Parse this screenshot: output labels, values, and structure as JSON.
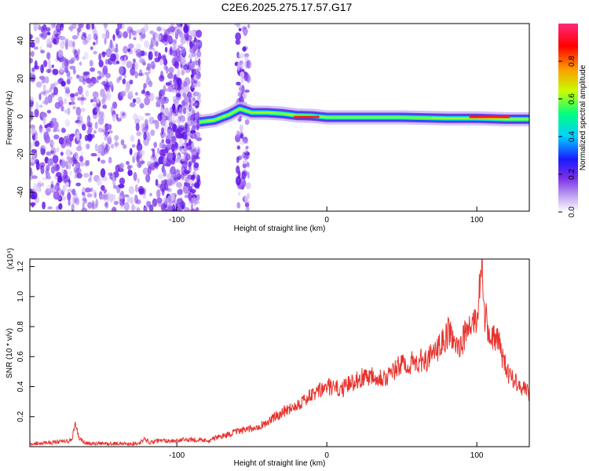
{
  "title": "C2E6.2025.275.17.57.G17",
  "chart_data": [
    {
      "type": "heatmap",
      "title": "C2E6.2025.275.17.57.G17",
      "xlabel": "Height of straight line (km)",
      "ylabel": "Frequency (Hz)",
      "xlim": [
        -198,
        135
      ],
      "ylim": [
        -50,
        49
      ],
      "x_ticks": [
        "-100",
        "0",
        "100"
      ],
      "y_ticks": [
        "-40",
        "-20",
        "0",
        "20",
        "40"
      ],
      "colorbar": {
        "label": "Normalized spectral amplitude",
        "range": [
          0.0,
          1.0
        ],
        "ticks": [
          "0.0",
          "0.2",
          "0.4",
          "0.6",
          "0.8"
        ],
        "colors": [
          "#ffffff",
          "#cbb4f2",
          "#7a2ee8",
          "#1a1aff",
          "#00cfff",
          "#00ff80",
          "#c8ff00",
          "#ff9900",
          "#ff0000",
          "#ff2a7a"
        ]
      },
      "noise_region": {
        "x_from": -198,
        "x_to": -85,
        "x_band_from": -110,
        "x_band_to": -90,
        "x_extra": [
          -60,
          -52
        ]
      },
      "ridge": [
        {
          "x": -85,
          "f": -3
        },
        {
          "x": -75,
          "f": -2
        },
        {
          "x": -65,
          "f": 1
        },
        {
          "x": -58,
          "f": 4
        },
        {
          "x": -50,
          "f": 2
        },
        {
          "x": -40,
          "f": 2
        },
        {
          "x": -30,
          "f": 1.5
        },
        {
          "x": -20,
          "f": 0.5
        },
        {
          "x": -10,
          "f": 0.3
        },
        {
          "x": 0,
          "f": -0.5
        },
        {
          "x": 20,
          "f": -0.5
        },
        {
          "x": 50,
          "f": -0.5
        },
        {
          "x": 80,
          "f": -1
        },
        {
          "x": 100,
          "f": -1
        },
        {
          "x": 120,
          "f": -1.5
        },
        {
          "x": 135,
          "f": -1.5
        }
      ]
    },
    {
      "type": "line",
      "xlabel": "Height of straight line (km)",
      "ylabel": "SNR (10 * v/v)",
      "y_scale_label": "(x10⁴)",
      "xlim": [
        -198,
        135
      ],
      "ylim": [
        0,
        1.25
      ],
      "x_ticks": [
        "-100",
        "0",
        "100"
      ],
      "y_ticks": [
        "0.2",
        "0.4",
        "0.6",
        "0.8",
        "1.0",
        "1.2"
      ],
      "series": [
        {
          "name": "SNR",
          "color": "#e8322d",
          "x": [
            -198,
            -180,
            -170,
            -168,
            -165,
            -160,
            -140,
            -125,
            -122,
            -118,
            -110,
            -100,
            -90,
            -80,
            -70,
            -60,
            -50,
            -40,
            -30,
            -20,
            -10,
            0,
            10,
            20,
            30,
            40,
            50,
            60,
            70,
            78,
            82,
            85,
            90,
            95,
            100,
            103,
            105,
            108,
            112,
            115,
            120,
            125,
            130,
            135
          ],
          "values": [
            0.02,
            0.03,
            0.04,
            0.16,
            0.05,
            0.02,
            0.02,
            0.02,
            0.05,
            0.03,
            0.04,
            0.04,
            0.05,
            0.04,
            0.07,
            0.1,
            0.12,
            0.16,
            0.23,
            0.28,
            0.34,
            0.4,
            0.38,
            0.45,
            0.48,
            0.46,
            0.55,
            0.56,
            0.6,
            0.7,
            0.78,
            0.65,
            0.7,
            0.8,
            0.85,
            1.2,
            0.9,
            0.75,
            0.72,
            0.68,
            0.5,
            0.45,
            0.4,
            0.35
          ]
        }
      ]
    }
  ]
}
